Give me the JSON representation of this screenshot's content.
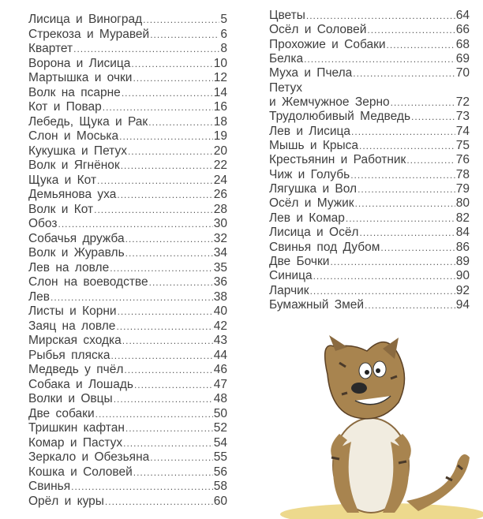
{
  "toc_left": [
    {
      "title": "Лисица и Виноград",
      "page": "5"
    },
    {
      "title": "Стрекоза и Муравей",
      "page": "6"
    },
    {
      "title": "Квартет",
      "page": "8"
    },
    {
      "title": "Ворона и Лисица",
      "page": "10"
    },
    {
      "title": "Мартышка и очки",
      "page": "12"
    },
    {
      "title": "Волк на псарне",
      "page": "14"
    },
    {
      "title": "Кот и Повар",
      "page": "16"
    },
    {
      "title": "Лебедь, Щука и Рак",
      "page": "18"
    },
    {
      "title": "Слон и Моська",
      "page": "19"
    },
    {
      "title": "Кукушка и Петух",
      "page": "20"
    },
    {
      "title": "Волк и Ягнёнок",
      "page": "22"
    },
    {
      "title": "Щука и Кот",
      "page": "24"
    },
    {
      "title": "Демьянова уха",
      "page": "26"
    },
    {
      "title": "Волк и Кот",
      "page": "28"
    },
    {
      "title": "Обоз",
      "page": "30"
    },
    {
      "title": "Собачья дружба",
      "page": "32"
    },
    {
      "title": "Волк и Журавль",
      "page": "34"
    },
    {
      "title": "Лев на ловле",
      "page": "35"
    },
    {
      "title": "Слон на воеводстве",
      "page": "36"
    },
    {
      "title": "Лев",
      "page": "38"
    },
    {
      "title": "Листы и Корни",
      "page": "40"
    },
    {
      "title": "Заяц на ловле",
      "page": "42"
    },
    {
      "title": "Мирская сходка",
      "page": "43"
    },
    {
      "title": "Рыбья пляска",
      "page": "44"
    },
    {
      "title": "Медведь у пчёл",
      "page": "46"
    },
    {
      "title": "Собака и Лошадь",
      "page": "47"
    },
    {
      "title": "Волки и Овцы",
      "page": "48"
    },
    {
      "title": "Две собаки",
      "page": "50"
    },
    {
      "title": "Тришкин кафтан",
      "page": "52"
    },
    {
      "title": "Комар и Пастух",
      "page": "54"
    },
    {
      "title": "Зеркало и Обезьяна",
      "page": "55"
    },
    {
      "title": "Кошка и Соловей",
      "page": "56"
    },
    {
      "title": "Свинья",
      "page": "58"
    },
    {
      "title": "Орёл и куры",
      "page": "60"
    }
  ],
  "toc_right": [
    {
      "title": "Цветы",
      "page": "64"
    },
    {
      "title": "Осёл и Соловей",
      "page": "66"
    },
    {
      "title": "Прохожие и Собаки",
      "page": "68"
    },
    {
      "title": "Белка",
      "page": "69"
    },
    {
      "title": "Муха и Пчела",
      "page": "70"
    },
    {
      "title": "Петух",
      "page": ""
    },
    {
      "title": "и Жемчужное Зерно",
      "page": "72"
    },
    {
      "title": "Трудолюбивый Медведь",
      "page": "73"
    },
    {
      "title": "Лев и Лисица",
      "page": "74"
    },
    {
      "title": "Мышь и Крыса",
      "page": "75"
    },
    {
      "title": "Крестьянин и Работник",
      "page": "76"
    },
    {
      "title": "Чиж и Голубь",
      "page": "78"
    },
    {
      "title": "Лягушка и Вол",
      "page": "79"
    },
    {
      "title": "Осёл и Мужик",
      "page": "80"
    },
    {
      "title": "Лев и Комар",
      "page": "82"
    },
    {
      "title": "Лисица и Осёл",
      "page": "84"
    },
    {
      "title": "Свинья под Дубом",
      "page": "86"
    },
    {
      "title": "Две Бочки",
      "page": "89"
    },
    {
      "title": "Синица",
      "page": "90"
    },
    {
      "title": "Ларчик",
      "page": "92"
    },
    {
      "title": "Бумажный Змей",
      "page": "94"
    }
  ],
  "illustration": {
    "icon": "cartoon-cat-illustration",
    "colors": {
      "fur": "#b08a55",
      "stripes": "#4a3a2a",
      "grass": "#e0c060"
    }
  }
}
